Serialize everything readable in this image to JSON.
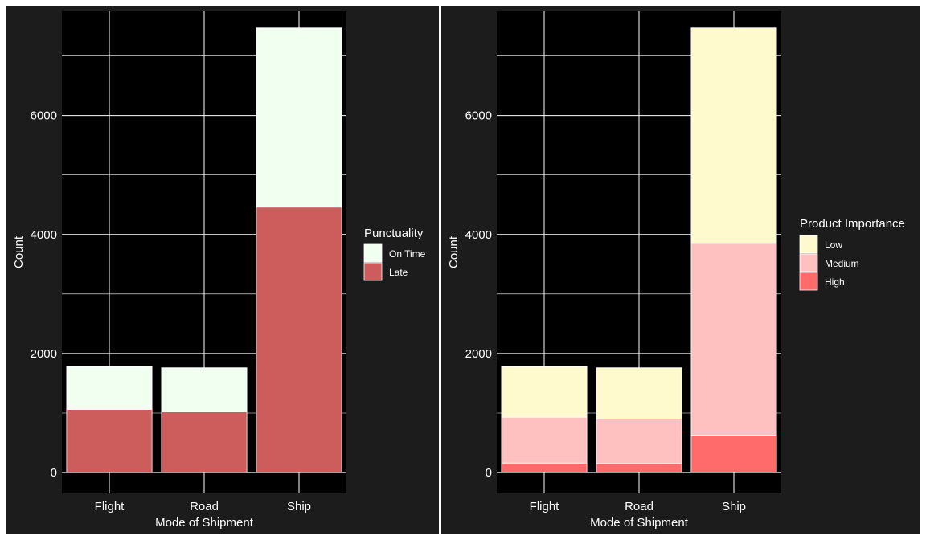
{
  "chart_data": [
    {
      "type": "bar",
      "stacked": true,
      "categories": [
        "Flight",
        "Road",
        "Ship"
      ],
      "xlabel": "Mode of Shipment",
      "ylabel": "Count",
      "ylim": [
        -350,
        7750
      ],
      "yticks": [
        0,
        2000,
        4000,
        6000
      ],
      "grid": true,
      "legend": {
        "title": "Punctuality",
        "position": "right",
        "entries": [
          "On Time",
          "Late"
        ]
      },
      "series": [
        {
          "name": "Late",
          "values": [
            1060,
            1020,
            4460
          ],
          "color": "#CD5C5C"
        },
        {
          "name": "On Time",
          "values": [
            720,
            740,
            3010
          ],
          "color": "#F0FFF0"
        }
      ]
    },
    {
      "type": "bar",
      "stacked": true,
      "categories": [
        "Flight",
        "Road",
        "Ship"
      ],
      "xlabel": "Mode of Shipment",
      "ylabel": "Count",
      "ylim": [
        -350,
        7750
      ],
      "yticks": [
        0,
        2000,
        4000,
        6000
      ],
      "grid": true,
      "legend": {
        "title": "Product Importance",
        "position": "right",
        "entries": [
          "Low",
          "Medium",
          "High"
        ]
      },
      "series": [
        {
          "name": "High",
          "values": [
            160,
            150,
            630
          ],
          "color": "#FF6A6A"
        },
        {
          "name": "Medium",
          "values": [
            770,
            750,
            3220
          ],
          "color": "#FFC0C0"
        },
        {
          "name": "Low",
          "values": [
            850,
            860,
            3620
          ],
          "color": "#FFFACD"
        }
      ]
    }
  ],
  "theme": {
    "page_background": "#1C1C1C",
    "panel_background": "#000000",
    "grid_color": "#FFFFFF",
    "text_color": "#FFFFFF",
    "bar_outline": "#FFFFFF"
  }
}
